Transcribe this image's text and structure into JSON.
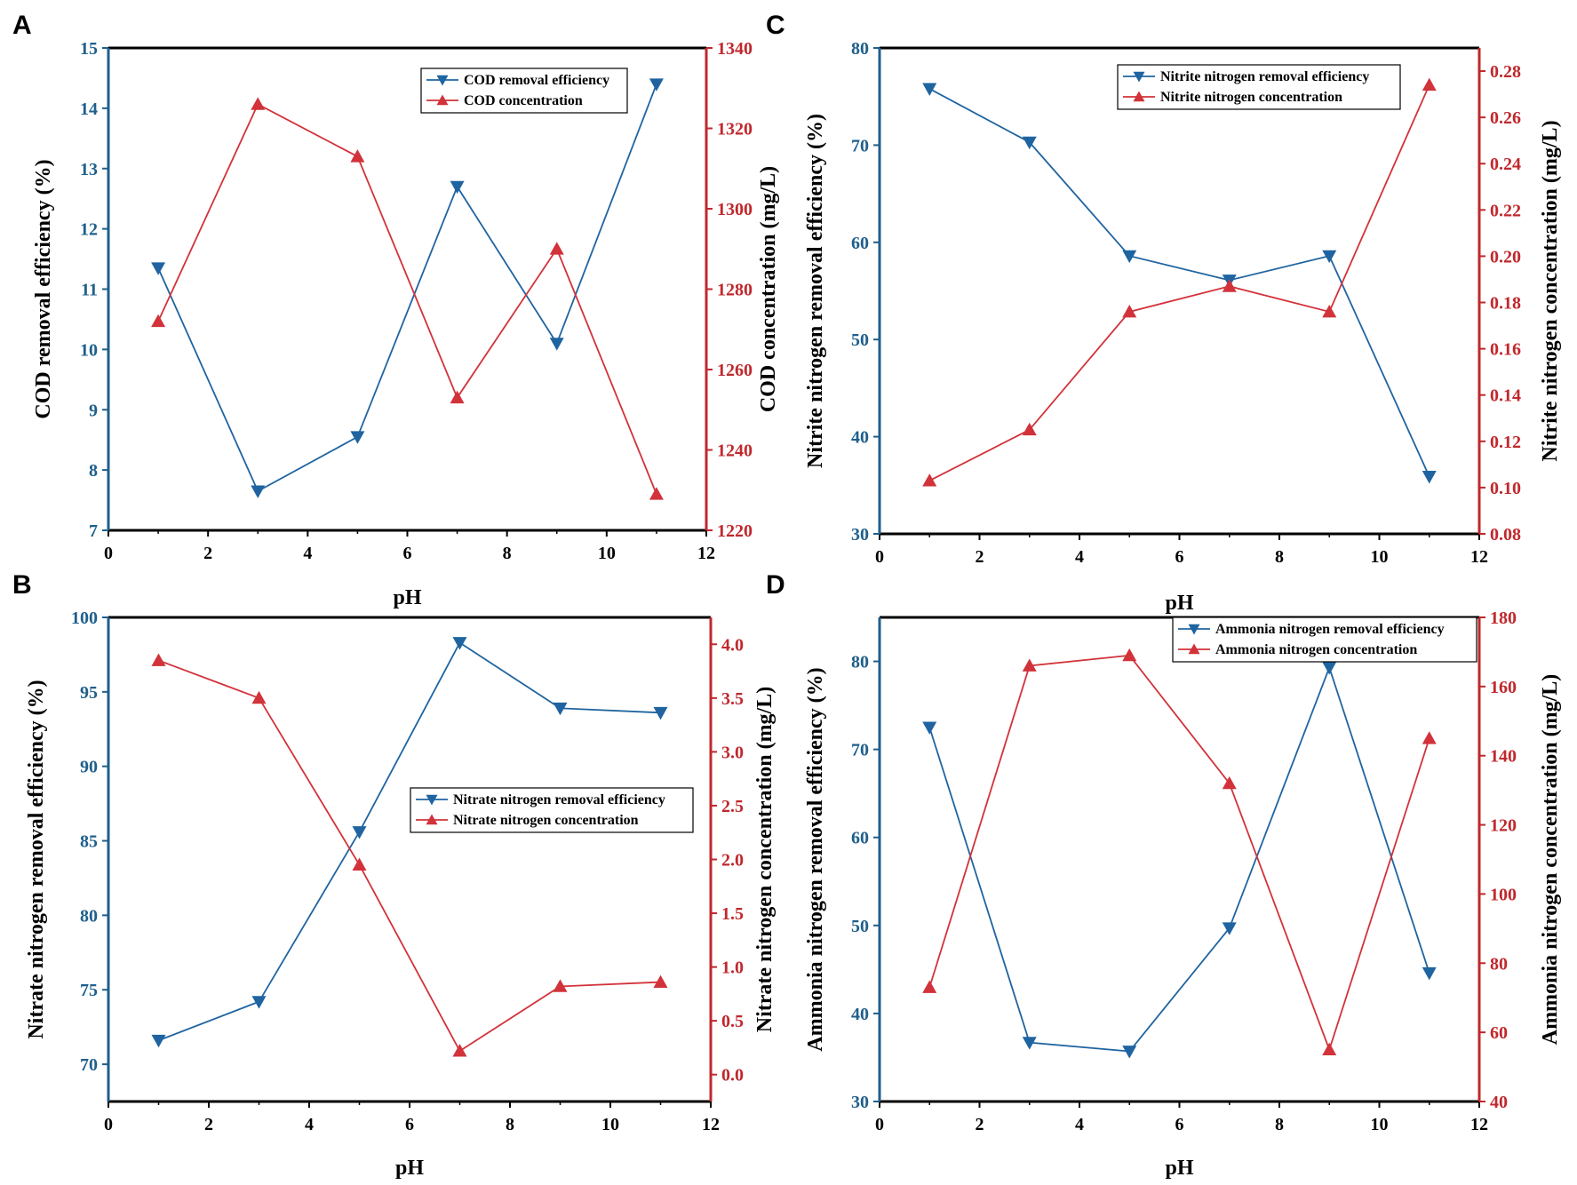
{
  "colors": {
    "efficiency": "#1f64a0",
    "concentration": "#d2323a",
    "frame": "#000000",
    "left_axis": "#1f5f8b",
    "right_axis": "#c0282d"
  },
  "chart_data": [
    {
      "type": "line",
      "panel": "A",
      "xlabel": "pH",
      "xlim": [
        0,
        12
      ],
      "xticks": [
        0,
        2,
        4,
        6,
        8,
        10,
        12
      ],
      "x": [
        1,
        3,
        5,
        7,
        9,
        11
      ],
      "ylabel": "COD removal efficiency (%)",
      "ylim": [
        7,
        15
      ],
      "yticks": [
        7,
        8,
        9,
        10,
        11,
        12,
        13,
        14,
        15
      ],
      "y2label": "COD concentration (mg/L)",
      "y2lim": [
        1220,
        1340
      ],
      "y2ticks": [
        1220,
        1240,
        1260,
        1280,
        1300,
        1320,
        1340
      ],
      "legend_position": "top-right",
      "series": [
        {
          "name": "COD removal efficiency",
          "axis": "left",
          "marker": "triangle-down",
          "values": [
            11.35,
            7.65,
            8.55,
            12.7,
            10.1,
            14.4
          ]
        },
        {
          "name": "COD concentration",
          "axis": "right",
          "marker": "triangle-up",
          "values": [
            1272,
            1326,
            1313,
            1253,
            1290,
            1229
          ]
        }
      ]
    },
    {
      "type": "line",
      "panel": "B",
      "xlabel": "pH",
      "xlim": [
        0,
        12
      ],
      "xticks": [
        0,
        2,
        4,
        6,
        8,
        10,
        12
      ],
      "x": [
        1,
        3,
        5,
        7,
        9,
        11
      ],
      "ylabel": "Nitrate nitrogen removal efficiency (%)",
      "ylim": [
        67.5,
        100
      ],
      "yticks": [
        70,
        75,
        80,
        85,
        90,
        95,
        100
      ],
      "y2label": "Nitrate nitrogen concentration (mg/L)",
      "y2lim": [
        -0.25,
        4.25
      ],
      "y2ticks": [
        "0.0",
        "0.5",
        "1.0",
        "1.5",
        "2.0",
        "2.5",
        "3.0",
        "3.5",
        "4.0"
      ],
      "legend_position": "center-right",
      "series": [
        {
          "name": "Nitrate nitrogen removal efficiency",
          "axis": "left",
          "marker": "triangle-down",
          "values": [
            71.6,
            74.2,
            85.6,
            98.3,
            93.9,
            93.6
          ]
        },
        {
          "name": "Nitrate nitrogen concentration",
          "axis": "right",
          "marker": "triangle-up",
          "values": [
            3.85,
            3.5,
            1.95,
            0.22,
            0.82,
            0.86
          ]
        }
      ]
    },
    {
      "type": "line",
      "panel": "C",
      "xlabel": "pH",
      "xlim": [
        0,
        12
      ],
      "xticks": [
        0,
        2,
        4,
        6,
        8,
        10,
        12
      ],
      "x": [
        1,
        3,
        5,
        7,
        9,
        11
      ],
      "ylabel": "Nitrite nitrogen removal efficiency (%)",
      "ylim": [
        30,
        80
      ],
      "yticks": [
        30,
        40,
        50,
        60,
        70,
        80
      ],
      "y2label": "Nitrite nitrogen concentration (mg/L)",
      "y2lim": [
        0.08,
        0.29
      ],
      "y2ticks": [
        "0.08",
        "0.10",
        "0.12",
        "0.14",
        "0.16",
        "0.18",
        "0.20",
        "0.22",
        "0.24",
        "0.26",
        "0.28"
      ],
      "legend_position": "top-right",
      "series": [
        {
          "name": "Nitrite nitrogen removal efficiency",
          "axis": "left",
          "marker": "triangle-down",
          "values": [
            75.8,
            70.3,
            58.6,
            56.1,
            58.6,
            35.9
          ]
        },
        {
          "name": "Nitrite nitrogen concentration",
          "axis": "right",
          "marker": "triangle-up",
          "values": [
            0.103,
            0.125,
            0.176,
            0.187,
            0.176,
            0.274
          ]
        }
      ]
    },
    {
      "type": "line",
      "panel": "D",
      "xlabel": "pH",
      "xlim": [
        0,
        12
      ],
      "xticks": [
        0,
        2,
        4,
        6,
        8,
        10,
        12
      ],
      "x": [
        1,
        3,
        5,
        7,
        9,
        11
      ],
      "ylabel": "Ammonia nitrogen removal efficiency (%)",
      "ylim": [
        30,
        85
      ],
      "yticks": [
        30,
        40,
        50,
        60,
        70,
        80
      ],
      "y2label": "Ammonia nitrogen concentration (mg/L)",
      "y2lim": [
        40,
        180
      ],
      "y2ticks": [
        40,
        60,
        80,
        100,
        120,
        140,
        160,
        180
      ],
      "legend_position": "top-right",
      "series": [
        {
          "name": "Ammonia nitrogen removal efficiency",
          "axis": "left",
          "marker": "triangle-down",
          "values": [
            72.5,
            36.7,
            35.7,
            49.7,
            79.3,
            44.6
          ]
        },
        {
          "name": "Ammonia nitrogen concentration",
          "axis": "right",
          "marker": "triangle-up",
          "values": [
            73,
            166,
            169,
            132,
            55,
            145
          ]
        }
      ]
    }
  ]
}
